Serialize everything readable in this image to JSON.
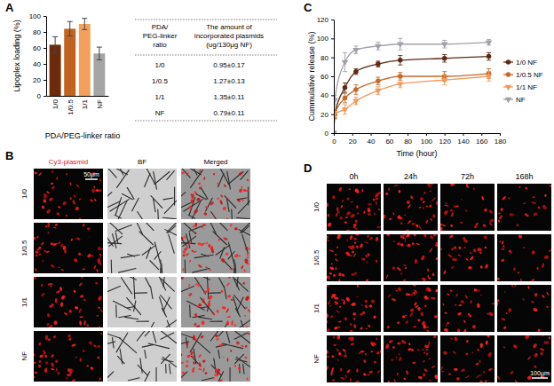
{
  "panel_labels": [
    "A",
    "B",
    "C",
    "D"
  ],
  "chart_data": [
    {
      "type": "bar",
      "y_label": "Lipoplex loading (%)",
      "x_label": "PDA/PEG-linker ratio",
      "categories": [
        "1/0",
        "1/0.5",
        "1/1",
        "NF"
      ],
      "values": [
        64,
        84,
        90,
        53
      ],
      "errors": [
        10,
        9,
        7,
        8
      ],
      "colors": [
        "#6e2b0c",
        "#c0631f",
        "#f5a05a",
        "#a5a5a5"
      ],
      "ylim": [
        0,
        100
      ],
      "yticks": [
        0,
        20,
        40,
        60,
        80,
        100
      ]
    },
    {
      "type": "line",
      "x_label": "Time (hour)",
      "y_label": "Cummulative release (%)",
      "x": [
        0,
        1,
        12,
        24,
        48,
        72,
        120,
        168
      ],
      "series": [
        {
          "name": "1/0 NF",
          "color": "#5e2a12",
          "marker": "circle",
          "values": [
            0,
            20,
            48,
            65,
            73,
            77,
            79,
            81
          ],
          "errors": [
            0,
            4,
            5,
            3,
            3,
            5,
            4,
            4
          ]
        },
        {
          "name": "1/0.5 NF",
          "color": "#c46a2b",
          "marker": "circle",
          "values": [
            0,
            20,
            37,
            46,
            55,
            60,
            60,
            63
          ],
          "errors": [
            0,
            5,
            5,
            5,
            4,
            4,
            5,
            5
          ]
        },
        {
          "name": "1/1 NF",
          "color": "#f09a5a",
          "marker": "triangle-down",
          "values": [
            0,
            20,
            25,
            34,
            45,
            52,
            56,
            60
          ],
          "errors": [
            0,
            3,
            5,
            4,
            4,
            4,
            5,
            5
          ]
        },
        {
          "name": "NF",
          "color": "#a0a0a8",
          "marker": "triangle-down",
          "values": [
            0,
            35,
            75,
            88,
            92,
            94,
            94,
            96
          ],
          "errors": [
            0,
            5,
            10,
            4,
            4,
            6,
            4,
            3
          ]
        }
      ],
      "xlim": [
        0,
        180
      ],
      "xticks": [
        0,
        20,
        40,
        60,
        80,
        100,
        120,
        140,
        160,
        180
      ],
      "ylim": [
        0,
        120
      ],
      "yticks": [
        0,
        20,
        40,
        60,
        80,
        100,
        120
      ],
      "legend": "right"
    }
  ],
  "table": {
    "header": [
      [
        "PDA/",
        "PEG-linker",
        "ratio"
      ],
      [
        "The amount of",
        "incorporated plasmids",
        "(ug/130μg NF)"
      ]
    ],
    "rows": [
      [
        "1/0",
        "0.95±0.17"
      ],
      [
        "1/0.5",
        "1.27±0.13"
      ],
      [
        "1/1",
        "1.35±0.11"
      ],
      [
        "NF",
        "0.79±0.11"
      ]
    ]
  },
  "image_panel_b": {
    "columns": [
      "Cy3-plasmid",
      "BF",
      "Merged"
    ],
    "rows": [
      "1/0",
      "1/0.5",
      "1/1",
      "NF"
    ],
    "scale_bar": "50μm"
  },
  "image_panel_d": {
    "columns": [
      "0h",
      "24h",
      "72h",
      "168h"
    ],
    "rows": [
      "1/0",
      "1/0.5",
      "1/1",
      "NF"
    ],
    "scale_bar": "100μm"
  }
}
